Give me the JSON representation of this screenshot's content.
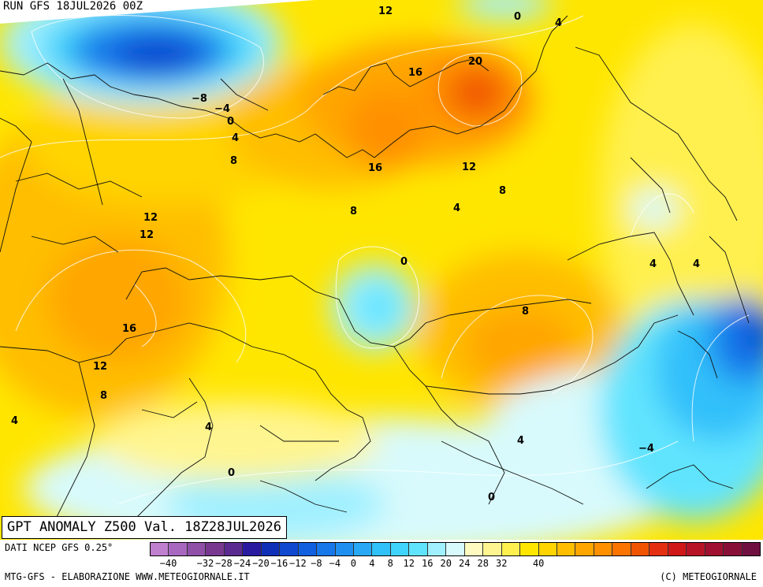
{
  "run_label": "RUN GFS 18JUL2026 00Z",
  "title": "GPT ANOMALY Z500 Val. 18Z28JUL2026",
  "data_source": "DATI NCEP GFS 0.25°",
  "credit_left": "MTG-GFS - ELABORAZIONE WWW.METEOGIORNALE.IT",
  "credit_right": "(C) METEOGIORNALE",
  "legend": {
    "colors": [
      "#c080d0",
      "#a868c0",
      "#9050a8",
      "#783890",
      "#5a2a90",
      "#2a1aa0",
      "#1030b8",
      "#1048d0",
      "#1060e0",
      "#1878ea",
      "#2090f0",
      "#28a8f5",
      "#30c0fa",
      "#40d4fc",
      "#60e4fe",
      "#a0f0ff",
      "#d8fafc",
      "#fffbc0",
      "#fff590",
      "#fff050",
      "#ffe600",
      "#ffd400",
      "#ffbe00",
      "#ffa600",
      "#ff9000",
      "#fb7300",
      "#f05400",
      "#e43010",
      "#d01818",
      "#b81428",
      "#a01030",
      "#881038",
      "#701040"
    ],
    "ticks": [
      "-40",
      "-36",
      "-32",
      "-28",
      "-24",
      "-20",
      "-16",
      "-12",
      "-8",
      "-4",
      "0",
      "4",
      "8",
      "12",
      "16",
      "20",
      "24",
      "28",
      "32",
      "36",
      "40"
    ],
    "shown_ticks": [
      "−40",
      "−32",
      "−28",
      "−24",
      "−20",
      "−16",
      "−12",
      "−8",
      "−4",
      "0",
      "4",
      "8",
      "12",
      "16",
      "20",
      "24",
      "28",
      "32",
      "40"
    ]
  },
  "contour_labels": [
    "12",
    "0",
    "4",
    "20",
    "16",
    "16",
    "12",
    "8",
    "8",
    "4",
    "−8",
    "−4",
    "0",
    "4",
    "8",
    "12",
    "12",
    "16",
    "12",
    "8",
    "4",
    "4",
    "0",
    "8",
    "4",
    "4",
    "−4",
    "4",
    "0",
    "0"
  ]
}
